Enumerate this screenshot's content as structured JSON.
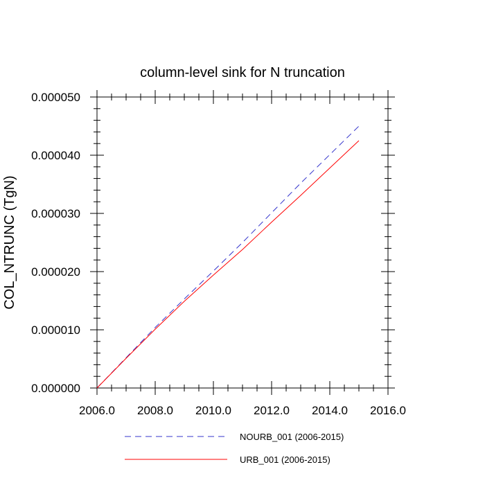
{
  "chart_data": {
    "type": "line",
    "title": "column-level sink for N truncation",
    "xlabel": "",
    "ylabel": "COL_NTRUNC  (TgN)",
    "xlim": [
      2006.0,
      2016.0
    ],
    "ylim": [
      0.0,
      5e-05
    ],
    "x_ticks": [
      2006.0,
      2008.0,
      2010.0,
      2012.0,
      2014.0,
      2016.0
    ],
    "x_tick_labels": [
      "2006.0",
      "2008.0",
      "2010.0",
      "2012.0",
      "2014.0",
      "2016.0"
    ],
    "y_ticks": [
      0.0,
      1e-05,
      2e-05,
      3e-05,
      4e-05,
      5e-05
    ],
    "y_tick_labels": [
      "0.000000",
      "0.000010",
      "0.000020",
      "0.000030",
      "0.000040",
      "0.000050"
    ],
    "grid": false,
    "legend_position": "bottom",
    "series": [
      {
        "name": "NOURB_001 (2006-2015)",
        "color": "#3333cc",
        "dash": "dashed",
        "x": [
          2006,
          2007,
          2008,
          2009,
          2010,
          2011,
          2012,
          2013,
          2014,
          2015
        ],
        "y": [
          0.0,
          5.2e-06,
          1.04e-05,
          1.53e-05,
          2.01e-05,
          2.5e-05,
          3.01e-05,
          3.52e-05,
          4.01e-05,
          4.5e-05
        ]
      },
      {
        "name": "URB_001 (2006-2015)",
        "color": "#ff0000",
        "dash": "solid",
        "x": [
          2006,
          2007,
          2008,
          2009,
          2010,
          2011,
          2012,
          2013,
          2014,
          2015
        ],
        "y": [
          0.0,
          5.1e-06,
          1.01e-05,
          1.49e-05,
          1.94e-05,
          2.38e-05,
          2.85e-05,
          3.31e-05,
          3.78e-05,
          4.25e-05
        ]
      }
    ]
  }
}
